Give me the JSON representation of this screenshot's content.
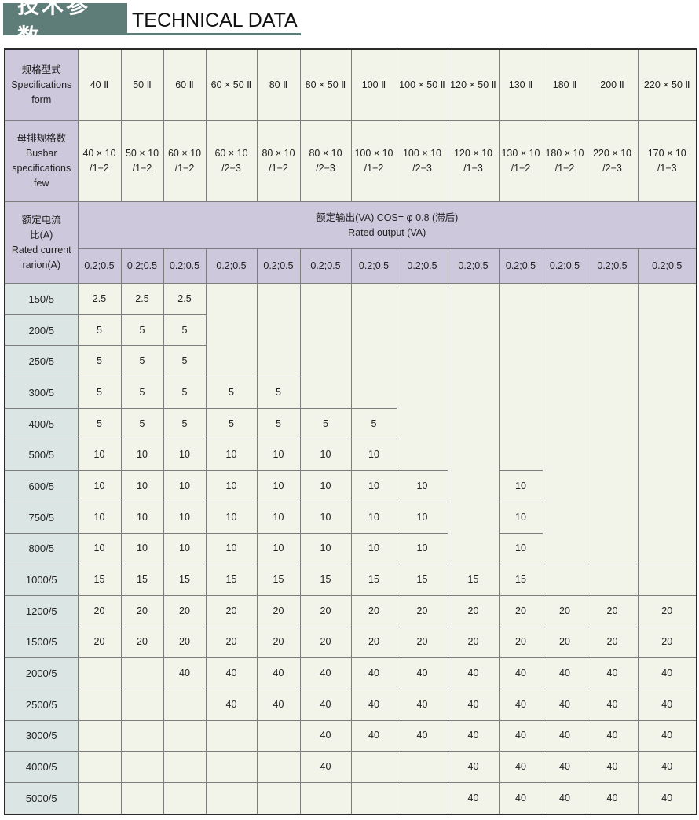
{
  "title": {
    "cn": "技术参数",
    "en": "TECHNICAL DATA"
  },
  "colors": {
    "title_bar": "#5f7d78",
    "label_bg": "#cdc8dc",
    "cell_bg": "#f2f3e9",
    "row_label_bg": "#dbe5e3"
  },
  "header": {
    "spec_label": [
      "规格型式",
      "Specifications",
      "form"
    ],
    "specs": [
      "40 Ⅱ",
      "50 Ⅱ",
      "60 Ⅱ",
      "60 × 50 Ⅱ",
      "80 Ⅱ",
      "80 × 50 Ⅱ",
      "100 Ⅱ",
      "100 × 50 Ⅱ",
      "120 × 50 Ⅱ",
      "130 Ⅱ",
      "180 Ⅱ",
      "200 Ⅱ",
      "220 × 50 Ⅱ"
    ],
    "busbar_label": [
      "母排规格数",
      "Busbar",
      "specifications",
      "few"
    ],
    "busbar": [
      [
        "40 × 10",
        "/1−2"
      ],
      [
        "50 × 10",
        "/1−2"
      ],
      [
        "60 × 10",
        "/1−2"
      ],
      [
        "60 × 10",
        "/2−3"
      ],
      [
        "80 × 10",
        "/1−2"
      ],
      [
        "80 × 10",
        "/2−3"
      ],
      [
        "100 × 10",
        "/1−2"
      ],
      [
        "100 × 10",
        "/2−3"
      ],
      [
        "120 × 10",
        "/1−3"
      ],
      [
        "130 × 10",
        "/1−2"
      ],
      [
        "180 × 10",
        "/1−2"
      ],
      [
        "220 × 10",
        "/2−3"
      ],
      [
        "170 × 10",
        "/1−3"
      ]
    ],
    "ratio_label": [
      "额定电流",
      "比(A)",
      "Rated current",
      "rarion(A)"
    ],
    "output_label": [
      "额定输出(VA) COS= φ 0.8 (滞后)",
      "Rated output (VA)"
    ],
    "accuracy": [
      "0.2;0.5",
      "0.2;0.5",
      "0.2;0.5",
      "0.2;0.5",
      "0.2;0.5",
      "0.2;0.5",
      "0.2;0.5",
      "0.2;0.5",
      "0.2;0.5",
      "0.2;0.5",
      "0.2;0.5",
      "0.2;0.5",
      "0.2;0.5"
    ]
  },
  "rows": [
    {
      "ratio": "150/5",
      "values": [
        "2.5",
        "2.5",
        "2.5",
        null,
        null,
        null,
        null,
        null,
        null,
        null,
        null,
        null,
        null
      ]
    },
    {
      "ratio": "200/5",
      "values": [
        "5",
        "5",
        "5",
        null,
        null,
        null,
        null,
        null,
        null,
        null,
        null,
        null,
        null
      ]
    },
    {
      "ratio": "250/5",
      "values": [
        "5",
        "5",
        "5",
        null,
        null,
        null,
        null,
        null,
        null,
        null,
        null,
        null,
        null
      ]
    },
    {
      "ratio": "300/5",
      "values": [
        "5",
        "5",
        "5",
        "5",
        "5",
        null,
        null,
        null,
        null,
        null,
        null,
        null,
        null
      ]
    },
    {
      "ratio": "400/5",
      "values": [
        "5",
        "5",
        "5",
        "5",
        "5",
        "5",
        "5",
        null,
        null,
        null,
        null,
        null,
        null
      ]
    },
    {
      "ratio": "500/5",
      "values": [
        "10",
        "10",
        "10",
        "10",
        "10",
        "10",
        "10",
        null,
        null,
        null,
        null,
        null,
        null
      ]
    },
    {
      "ratio": "600/5",
      "values": [
        "10",
        "10",
        "10",
        "10",
        "10",
        "10",
        "10",
        "10",
        null,
        "10",
        null,
        null,
        null
      ]
    },
    {
      "ratio": "750/5",
      "values": [
        "10",
        "10",
        "10",
        "10",
        "10",
        "10",
        "10",
        "10",
        null,
        "10",
        null,
        null,
        null
      ]
    },
    {
      "ratio": "800/5",
      "values": [
        "10",
        "10",
        "10",
        "10",
        "10",
        "10",
        "10",
        "10",
        null,
        "10",
        null,
        null,
        null
      ]
    },
    {
      "ratio": "1000/5",
      "values": [
        "15",
        "15",
        "15",
        "15",
        "15",
        "15",
        "15",
        "15",
        "15",
        "15",
        null,
        null,
        null
      ]
    },
    {
      "ratio": "1200/5",
      "values": [
        "20",
        "20",
        "20",
        "20",
        "20",
        "20",
        "20",
        "20",
        "20",
        "20",
        "20",
        "20",
        "20"
      ]
    },
    {
      "ratio": "1500/5",
      "values": [
        "20",
        "20",
        "20",
        "20",
        "20",
        "20",
        "20",
        "20",
        "20",
        "20",
        "20",
        "20",
        "20"
      ]
    },
    {
      "ratio": "2000/5",
      "values": [
        null,
        null,
        "40",
        "40",
        "40",
        "40",
        "40",
        "40",
        "40",
        "40",
        "40",
        "40",
        "40"
      ]
    },
    {
      "ratio": "2500/5",
      "values": [
        null,
        null,
        null,
        "40",
        "40",
        "40",
        "40",
        "40",
        "40",
        "40",
        "40",
        "40",
        "40"
      ]
    },
    {
      "ratio": "3000/5",
      "values": [
        null,
        null,
        null,
        null,
        null,
        "40",
        "40",
        "40",
        "40",
        "40",
        "40",
        "40",
        "40"
      ]
    },
    {
      "ratio": "4000/5",
      "values": [
        null,
        null,
        null,
        null,
        null,
        "40",
        null,
        null,
        "40",
        "40",
        "40",
        "40",
        "40"
      ]
    },
    {
      "ratio": "5000/5",
      "values": [
        null,
        null,
        null,
        null,
        null,
        null,
        null,
        null,
        "40",
        "40",
        "40",
        "40",
        "40"
      ]
    }
  ]
}
